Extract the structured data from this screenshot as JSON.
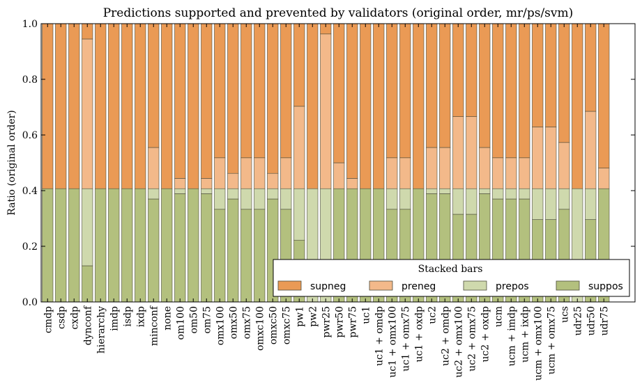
{
  "chart_data": {
    "type": "bar",
    "stacked": true,
    "title": "Predictions supported and prevented by validators (original order, mr/ps/svm)",
    "xlabel": "",
    "ylabel": "Ratio (original order)",
    "ylim": [
      0,
      1.0
    ],
    "yticks": [
      "0.0",
      "0.2",
      "0.4",
      "0.6",
      "0.8",
      "1.0"
    ],
    "grid": false,
    "legend": {
      "title": "Stacked bars",
      "placement": "lower-right",
      "entries": [
        "supneg",
        "preneg",
        "prepos",
        "suppos"
      ]
    },
    "colors": {
      "supneg": "#ea9a55",
      "preneg": "#f3b98a",
      "prepos": "#cfd9ad",
      "suppos": "#b3c07e"
    },
    "categories": [
      "cmdp",
      "csdp",
      "cxdp",
      "dynconf",
      "hierarchy",
      "imdp",
      "isdp",
      "ixdp",
      "minconf",
      "none",
      "om100",
      "om50",
      "om75",
      "omx100",
      "omx50",
      "omx75",
      "omxc100",
      "omxc50",
      "omxc75",
      "pw1",
      "pw2",
      "pwr25",
      "pwr50",
      "pwr75",
      "uc1",
      "uc1 + omdp",
      "uc1 + omx100",
      "uc1 + omx75",
      "uc1 + oxdp",
      "uc2",
      "uc2 + omdp",
      "uc2 + omx100",
      "uc2 + omx75",
      "uc2 + oxdp",
      "ucm",
      "ucm + imdp",
      "ucm + ixdp",
      "ucm + omx100",
      "ucm + omx75",
      "ucs",
      "udr25",
      "udr50",
      "udr75"
    ],
    "series": [
      {
        "name": "suppos",
        "values": [
          0.407,
          0.407,
          0.407,
          0.13,
          0.407,
          0.407,
          0.407,
          0.407,
          0.37,
          0.407,
          0.389,
          0.407,
          0.389,
          0.333,
          0.37,
          0.333,
          0.333,
          0.37,
          0.333,
          0.222,
          0.0,
          0.0,
          0.407,
          0.407,
          0.407,
          0.407,
          0.333,
          0.333,
          0.407,
          0.389,
          0.389,
          0.315,
          0.315,
          0.389,
          0.37,
          0.37,
          0.37,
          0.296,
          0.296,
          0.333,
          0.0,
          0.296,
          0.407
        ]
      },
      {
        "name": "prepos",
        "values": [
          0.0,
          0.0,
          0.0,
          0.277,
          0.0,
          0.0,
          0.0,
          0.0,
          0.037,
          0.0,
          0.018,
          0.0,
          0.018,
          0.074,
          0.037,
          0.074,
          0.074,
          0.037,
          0.074,
          0.185,
          0.407,
          0.407,
          0.0,
          0.0,
          0.0,
          0.0,
          0.074,
          0.074,
          0.0,
          0.018,
          0.018,
          0.092,
          0.092,
          0.018,
          0.037,
          0.037,
          0.037,
          0.111,
          0.111,
          0.074,
          0.407,
          0.111,
          0.0
        ]
      },
      {
        "name": "preneg",
        "values": [
          0.0,
          0.0,
          0.0,
          0.538,
          0.0,
          0.0,
          0.0,
          0.0,
          0.148,
          0.0,
          0.037,
          0.0,
          0.037,
          0.111,
          0.055,
          0.111,
          0.111,
          0.055,
          0.111,
          0.296,
          0.0,
          0.556,
          0.093,
          0.037,
          0.0,
          0.0,
          0.111,
          0.111,
          0.0,
          0.148,
          0.148,
          0.259,
          0.259,
          0.148,
          0.111,
          0.111,
          0.111,
          0.222,
          0.222,
          0.166,
          0.0,
          0.278,
          0.074
        ]
      },
      {
        "name": "supneg",
        "values": [
          0.593,
          0.593,
          0.593,
          0.055,
          0.593,
          0.593,
          0.593,
          0.593,
          0.445,
          0.593,
          0.556,
          0.593,
          0.556,
          0.482,
          0.538,
          0.482,
          0.482,
          0.538,
          0.482,
          0.297,
          0.593,
          0.037,
          0.5,
          0.556,
          0.593,
          0.593,
          0.482,
          0.482,
          0.593,
          0.445,
          0.445,
          0.334,
          0.334,
          0.445,
          0.482,
          0.482,
          0.482,
          0.371,
          0.371,
          0.427,
          0.593,
          0.315,
          0.519
        ]
      }
    ]
  }
}
